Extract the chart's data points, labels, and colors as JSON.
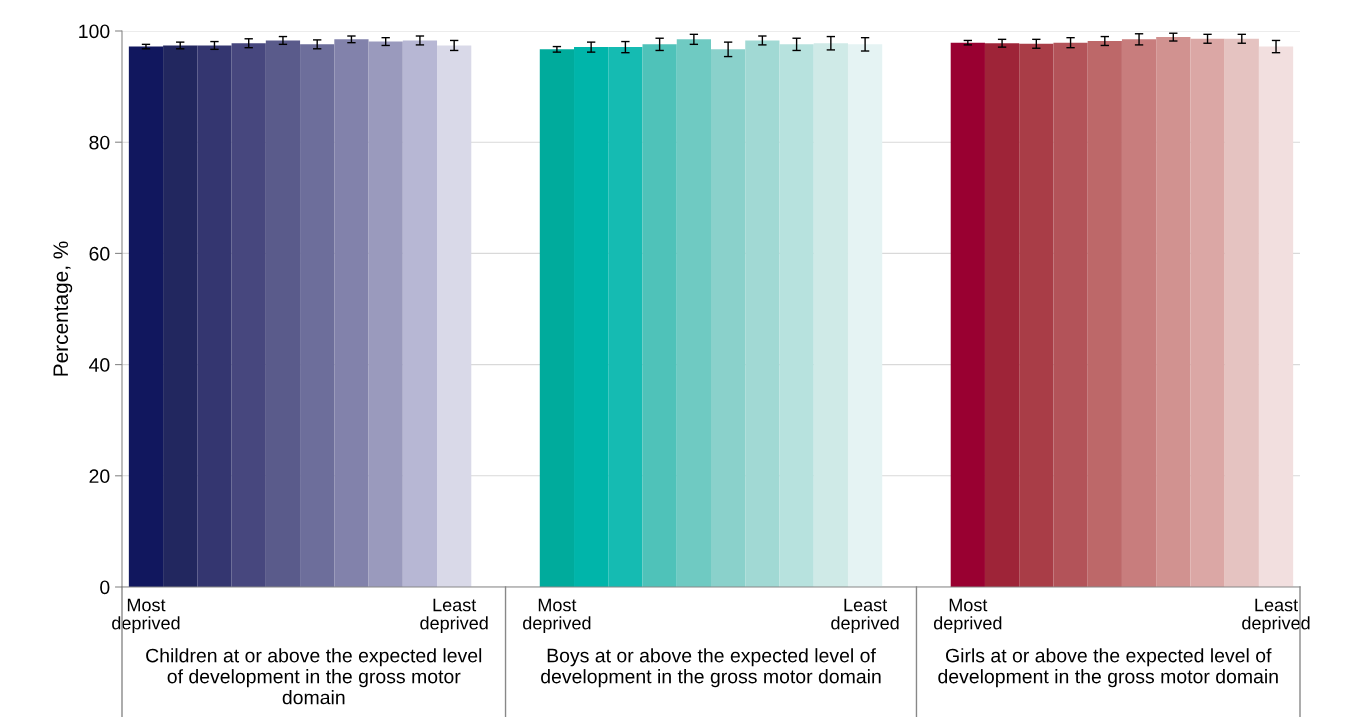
{
  "chart_data": {
    "type": "bar",
    "ylabel": "Percentage, %",
    "categories": [
      "Most deprived",
      null,
      null,
      null,
      null,
      null,
      null,
      null,
      null,
      "Least deprived",
      null,
      null,
      "Most deprived",
      null,
      null,
      null,
      null,
      null,
      null,
      null,
      null,
      "Least deprived",
      null,
      null,
      "Most deprived",
      null,
      null,
      null,
      null,
      null,
      null,
      null,
      null,
      "Least deprived"
    ],
    "values": [
      97.2,
      97.4,
      97.4,
      97.8,
      98.3,
      97.6,
      98.5,
      98.1,
      98.3,
      97.4,
      null,
      null,
      96.7,
      97.1,
      97.1,
      97.6,
      98.5,
      96.7,
      98.3,
      97.6,
      97.8,
      97.6,
      null,
      null,
      97.9,
      97.8,
      97.7,
      97.9,
      98.2,
      98.5,
      98.9,
      98.6,
      98.6,
      97.2
    ],
    "errors": [
      0.4,
      0.6,
      0.7,
      0.8,
      0.7,
      0.8,
      0.6,
      0.7,
      0.8,
      0.9,
      null,
      null,
      0.5,
      0.9,
      1.0,
      1.1,
      0.9,
      1.3,
      0.8,
      1.1,
      1.2,
      1.2,
      null,
      null,
      0.4,
      0.7,
      0.8,
      0.9,
      0.8,
      1.0,
      0.7,
      0.8,
      0.8,
      1.1
    ],
    "colors": [
      "#11175e",
      "#22275f",
      "#343670",
      "#47477e",
      "#5a5b8b",
      "#6d6e9b",
      "#8282ab",
      "#9a9abd",
      "#b7b7d4",
      "#d9d9e8",
      null,
      null,
      "#00ab9c",
      "#00b5aa",
      "#15bbb2",
      "#4fc2b9",
      "#6fcac2",
      "#8ad1cb",
      "#a1d9d4",
      "#b7e2de",
      "#cfeae7",
      "#e5f3f3",
      null,
      null,
      "#990031",
      "#9e2438",
      "#a93d47",
      "#b35359",
      "#bd6869",
      "#c87d7d",
      "#d19290",
      "#dba7a5",
      "#e5c3c1",
      "#f2dfdf"
    ],
    "ylim": [
      0,
      100
    ],
    "yticks": [
      0,
      20,
      40,
      60,
      80,
      100
    ],
    "grid": "y",
    "annotations": [
      "Children at or above the expected level\nof development in the gross motor\ndomain",
      "Boys at or above the expected level of\ndevelopment in the gross motor domain",
      "Girls at or above the expected level of\ndevelopment in the gross motor domain"
    ]
  }
}
